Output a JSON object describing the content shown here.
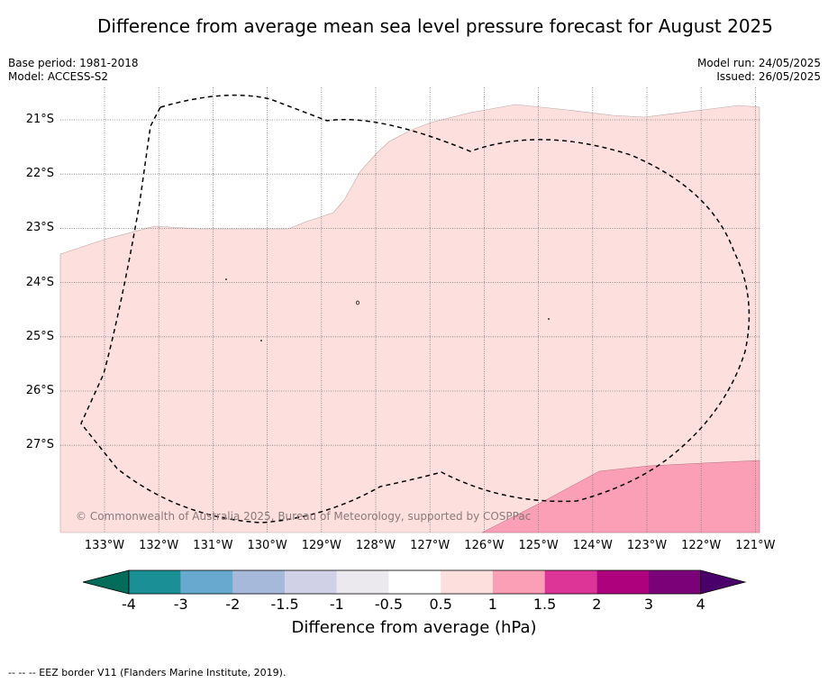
{
  "title": "Difference from average mean sea level pressure forecast for August 2025",
  "base_period": "Base period: 1981-2018",
  "model": "Model: ACCESS-S2",
  "model_run": "Model run: 24/05/2025",
  "issued": "Issued: 26/05/2025",
  "lat_labels": [
    "21°S",
    "22°S",
    "23°S",
    "24°S",
    "25°S",
    "26°S",
    "27°S"
  ],
  "lon_labels": [
    "133°W",
    "132°W",
    "131°W",
    "130°W",
    "129°W",
    "128°W",
    "127°W",
    "126°W",
    "125°W",
    "124°W",
    "123°W",
    "122°W",
    "121°W"
  ],
  "copyright": "© Commonwealth of Australia 2025, Bureau of Meteorology, supported by COSPPac",
  "colorbar": {
    "ticks": [
      "-4",
      "-3",
      "-2",
      "-1.5",
      "-1",
      "-0.5",
      "0.5",
      "1",
      "1.5",
      "2",
      "3",
      "4"
    ],
    "colors": [
      "#1a9096",
      "#67a9cf",
      "#a6b9da",
      "#d0d1e6",
      "#ece9ee",
      "#ffffff",
      "#fde0dd",
      "#fa9fb5",
      "#dd3497",
      "#ae017e",
      "#7a0177"
    ],
    "under_color": "#016c59",
    "over_color": "#49006a",
    "label": "Difference from average (hPa)"
  },
  "map_colors": {
    "class_0_5_to_1": "#fde0dd",
    "class_1_to_1_5": "#fa9fb5"
  },
  "footnote": "--  --  -- EEZ border V11 (Flanders Marine Institute, 2019)."
}
